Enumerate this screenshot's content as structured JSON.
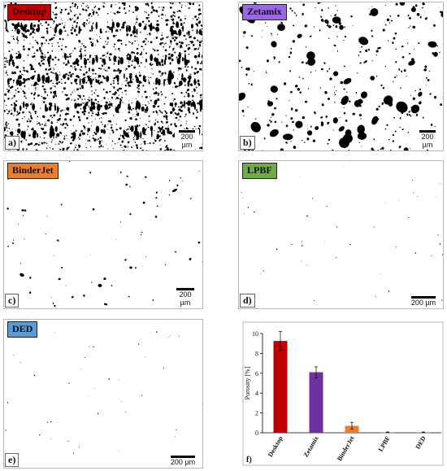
{
  "panels": [
    {
      "id": "a",
      "letter": "a)",
      "tag": "Desktop",
      "tag_color": "#c00000",
      "scale_label": "200 µm"
    },
    {
      "id": "b",
      "letter": "b)",
      "tag": "Zetamix",
      "tag_color": "#9a67e6",
      "scale_label": "200 µm"
    },
    {
      "id": "c",
      "letter": "c)",
      "tag": "BinderJet",
      "tag_color": "#ed7d31",
      "scale_label": "200 µm"
    },
    {
      "id": "d",
      "letter": "d)",
      "tag": "LPBF",
      "tag_color": "#70ad47",
      "scale_label": "200 µm"
    },
    {
      "id": "e",
      "letter": "e)",
      "tag": "DED",
      "tag_color": "#5b9bd5",
      "scale_label": "200 µm"
    }
  ],
  "chart_label": "f)",
  "chart_data": {
    "type": "bar",
    "categories": [
      "Desktop",
      "Zetamix",
      "BinderJet",
      "LPBF",
      "DED"
    ],
    "values": [
      9.25,
      6.1,
      0.7,
      0.05,
      0.05
    ],
    "errors": [
      0.95,
      0.55,
      0.35,
      0.03,
      0.03
    ],
    "colors": [
      "#c00000",
      "#7030a0",
      "#ed7d31",
      "#70ad47",
      "#5b9bd5"
    ],
    "ylabel": "Porosity [%]",
    "xlabel": "",
    "ylim": [
      0,
      10
    ],
    "yticks": [
      "0",
      "2",
      "4",
      "6",
      "8",
      "10"
    ],
    "grid": false
  }
}
